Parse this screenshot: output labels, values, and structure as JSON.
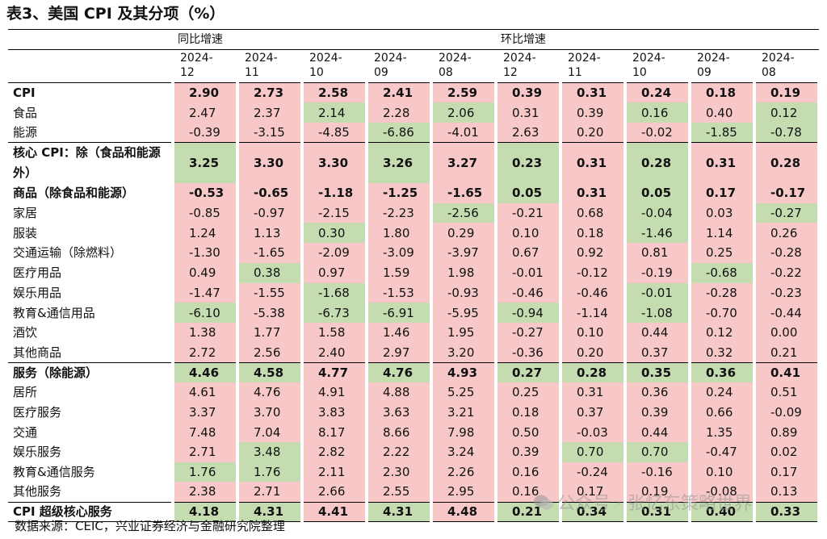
{
  "title": "表3、美国 CPI 及其分项（%）",
  "source": "数据来源：CEIC，兴业证券经济与金融研究院整理",
  "watermark": "公众号 · 张忆东策略世界",
  "colors": {
    "positive": "#f8c8c8",
    "negative": "#c4dcb0"
  },
  "groups": [
    {
      "label": "同比增速"
    },
    {
      "label": "环比增速"
    }
  ],
  "periods": [
    "2024-\n12",
    "2024-\n11",
    "2024-\n10",
    "2024-\n09",
    "2024-\n08",
    "2024-\n12",
    "2024-\n11",
    "2024-\n10",
    "2024-\n09",
    "2024-\n08"
  ],
  "rows": [
    {
      "label": "CPI",
      "bold": true,
      "values": [
        "2.90",
        "2.73",
        "2.58",
        "2.41",
        "2.59",
        "0.39",
        "0.31",
        "0.24",
        "0.18",
        "0.19"
      ],
      "shade": [
        "pos",
        "pos",
        "pos",
        "pos",
        "pos",
        "pos",
        "pos",
        "pos",
        "pos",
        "pos"
      ]
    },
    {
      "label": "食品",
      "values": [
        "2.47",
        "2.37",
        "2.14",
        "2.28",
        "2.06",
        "0.31",
        "0.39",
        "0.16",
        "0.40",
        "0.12"
      ],
      "shade": [
        "pos",
        "pos",
        "neg",
        "pos",
        "neg",
        "pos",
        "pos",
        "neg",
        "pos",
        "neg"
      ]
    },
    {
      "label": "能源",
      "values": [
        "-0.39",
        "-3.15",
        "-4.85",
        "-6.86",
        "-4.01",
        "2.63",
        "0.20",
        "-0.02",
        "-1.85",
        "-0.78"
      ],
      "shade": [
        "pos",
        "pos",
        "pos",
        "neg",
        "pos",
        "pos",
        "pos",
        "pos",
        "neg",
        "neg"
      ]
    },
    {
      "label": "核心 CPI：除（食品和能源外）",
      "bold": true,
      "tall": true,
      "sep": true,
      "values": [
        "3.25",
        "3.30",
        "3.30",
        "3.26",
        "3.27",
        "0.23",
        "0.31",
        "0.28",
        "0.31",
        "0.28"
      ],
      "shade": [
        "neg",
        "pos",
        "pos",
        "neg",
        "pos",
        "neg",
        "pos",
        "neg",
        "pos",
        "pos"
      ]
    },
    {
      "label": "商品（除食品和能源）",
      "bold": true,
      "values": [
        "-0.53",
        "-0.65",
        "-1.18",
        "-1.25",
        "-1.65",
        "0.05",
        "0.31",
        "0.05",
        "0.17",
        "-0.17"
      ],
      "shade": [
        "pos",
        "pos",
        "pos",
        "pos",
        "pos",
        "neg",
        "pos",
        "neg",
        "pos",
        "pos"
      ]
    },
    {
      "label": "家居",
      "values": [
        "-0.85",
        "-0.97",
        "-2.15",
        "-2.23",
        "-2.56",
        "-0.21",
        "0.68",
        "-0.04",
        "0.03",
        "-0.27"
      ],
      "shade": [
        "pos",
        "pos",
        "pos",
        "pos",
        "neg",
        "pos",
        "pos",
        "neg",
        "pos",
        "neg"
      ]
    },
    {
      "label": "服装",
      "values": [
        "1.24",
        "1.13",
        "0.30",
        "1.80",
        "0.29",
        "0.10",
        "0.18",
        "-1.46",
        "1.14",
        "0.26"
      ],
      "shade": [
        "pos",
        "pos",
        "neg",
        "pos",
        "pos",
        "pos",
        "pos",
        "neg",
        "pos",
        "pos"
      ]
    },
    {
      "label": "交通运输（除燃料）",
      "values": [
        "-1.30",
        "-1.65",
        "-2.09",
        "-3.09",
        "-3.97",
        "0.67",
        "0.92",
        "0.81",
        "0.25",
        "-0.28"
      ],
      "shade": [
        "pos",
        "pos",
        "pos",
        "pos",
        "pos",
        "pos",
        "pos",
        "pos",
        "pos",
        "pos"
      ]
    },
    {
      "label": "医疗用品",
      "values": [
        "0.49",
        "0.38",
        "0.97",
        "1.59",
        "1.98",
        "-0.01",
        "-0.12",
        "-0.19",
        "-0.68",
        "-0.22"
      ],
      "shade": [
        "pos",
        "neg",
        "pos",
        "pos",
        "pos",
        "pos",
        "pos",
        "pos",
        "neg",
        "pos"
      ]
    },
    {
      "label": "娱乐用品",
      "values": [
        "-1.47",
        "-1.55",
        "-1.68",
        "-1.53",
        "-0.93",
        "-0.46",
        "-0.46",
        "-0.01",
        "-0.28",
        "-0.23"
      ],
      "shade": [
        "pos",
        "pos",
        "neg",
        "pos",
        "pos",
        "pos",
        "pos",
        "neg",
        "pos",
        "pos"
      ]
    },
    {
      "label": "教育&通信用品",
      "values": [
        "-6.10",
        "-5.38",
        "-6.73",
        "-6.91",
        "-5.95",
        "-0.94",
        "-1.14",
        "-1.08",
        "-0.70",
        "-0.44"
      ],
      "shade": [
        "neg",
        "pos",
        "neg",
        "neg",
        "pos",
        "neg",
        "pos",
        "neg",
        "pos",
        "pos"
      ]
    },
    {
      "label": "酒饮",
      "values": [
        "1.38",
        "1.77",
        "1.58",
        "1.46",
        "1.95",
        "-0.27",
        "0.10",
        "0.44",
        "0.12",
        "0.00"
      ],
      "shade": [
        "pos",
        "pos",
        "pos",
        "pos",
        "pos",
        "pos",
        "pos",
        "pos",
        "pos",
        "pos"
      ]
    },
    {
      "label": "其他商品",
      "values": [
        "2.72",
        "2.56",
        "2.40",
        "2.97",
        "3.20",
        "-0.36",
        "0.20",
        "0.37",
        "0.32",
        "0.21"
      ],
      "shade": [
        "pos",
        "pos",
        "pos",
        "pos",
        "pos",
        "pos",
        "pos",
        "pos",
        "pos",
        "pos"
      ]
    },
    {
      "label": "服务（除能源）",
      "bold": true,
      "sep": true,
      "values": [
        "4.46",
        "4.58",
        "4.77",
        "4.76",
        "4.93",
        "0.27",
        "0.28",
        "0.35",
        "0.36",
        "0.41"
      ],
      "shade": [
        "neg",
        "neg",
        "pos",
        "neg",
        "pos",
        "neg",
        "neg",
        "neg",
        "neg",
        "pos"
      ]
    },
    {
      "label": "居所",
      "values": [
        "4.61",
        "4.76",
        "4.91",
        "4.88",
        "5.25",
        "0.25",
        "0.31",
        "0.36",
        "0.24",
        "0.51"
      ],
      "shade": [
        "pos",
        "pos",
        "pos",
        "pos",
        "pos",
        "pos",
        "pos",
        "pos",
        "pos",
        "pos"
      ]
    },
    {
      "label": "医疗服务",
      "values": [
        "3.37",
        "3.70",
        "3.83",
        "3.63",
        "3.21",
        "0.18",
        "0.37",
        "0.39",
        "0.66",
        "-0.09"
      ],
      "shade": [
        "pos",
        "pos",
        "pos",
        "pos",
        "pos",
        "pos",
        "pos",
        "pos",
        "pos",
        "pos"
      ]
    },
    {
      "label": "交通",
      "values": [
        "7.48",
        "7.04",
        "8.17",
        "8.66",
        "7.98",
        "0.50",
        "-0.03",
        "0.44",
        "1.35",
        "0.89"
      ],
      "shade": [
        "pos",
        "pos",
        "pos",
        "pos",
        "pos",
        "pos",
        "pos",
        "pos",
        "pos",
        "pos"
      ]
    },
    {
      "label": "娱乐服务",
      "values": [
        "2.71",
        "3.48",
        "2.82",
        "2.22",
        "3.24",
        "0.39",
        "0.70",
        "0.70",
        "-0.47",
        "0.02"
      ],
      "shade": [
        "pos",
        "neg",
        "pos",
        "pos",
        "pos",
        "pos",
        "neg",
        "neg",
        "pos",
        "pos"
      ]
    },
    {
      "label": "教育&通信服务",
      "values": [
        "1.76",
        "1.76",
        "2.11",
        "2.30",
        "2.26",
        "0.16",
        "-0.24",
        "-0.16",
        "0.10",
        "0.17"
      ],
      "shade": [
        "neg",
        "neg",
        "pos",
        "pos",
        "pos",
        "pos",
        "pos",
        "pos",
        "pos",
        "pos"
      ]
    },
    {
      "label": "其他服务",
      "values": [
        "2.38",
        "2.71",
        "2.66",
        "2.55",
        "2.95",
        "0.16",
        "0.17",
        "0.19",
        "-0.08",
        "0.13"
      ],
      "shade": [
        "pos",
        "pos",
        "pos",
        "pos",
        "pos",
        "pos",
        "pos",
        "pos",
        "pos",
        "pos"
      ]
    },
    {
      "label": "CPI 超级核心服务",
      "bold": true,
      "sep": true,
      "last": true,
      "values": [
        "4.18",
        "4.31",
        "4.41",
        "4.31",
        "4.48",
        "0.21",
        "0.34",
        "0.31",
        "0.40",
        "0.33"
      ],
      "shade": [
        "neg",
        "neg",
        "pos",
        "neg",
        "pos",
        "neg",
        "neg",
        "neg",
        "neg",
        "neg"
      ]
    }
  ]
}
